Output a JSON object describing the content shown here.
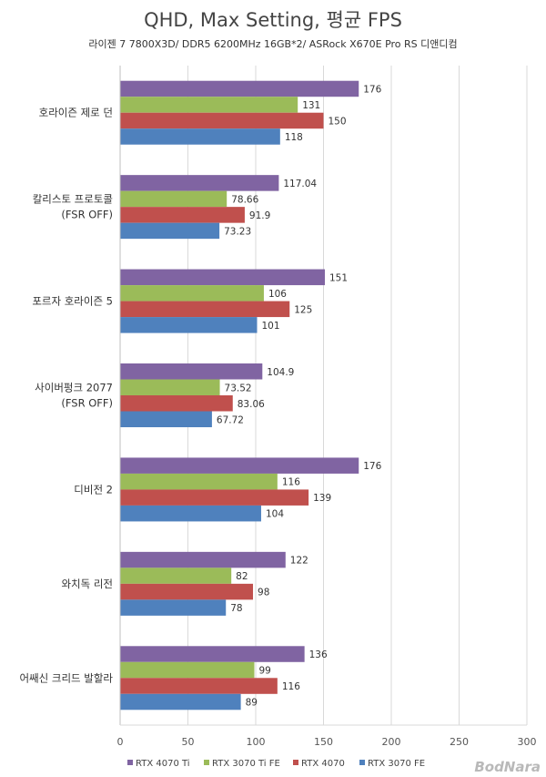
{
  "chart_data": {
    "type": "bar",
    "orientation": "horizontal",
    "title": "QHD, Max Setting, 평균 FPS",
    "subtitle": "라이젠 7 7800X3D/ DDR5 6200MHz 16GB*2/ ASRock X670E Pro RS 디앤디컴",
    "categories": [
      [
        "호라이즌 제로 던"
      ],
      [
        "칼리스토 프로토콜",
        "(FSR OFF)"
      ],
      [
        "포르자 호라이즌 5"
      ],
      [
        "사이버펑크 2077",
        "(FSR OFF)"
      ],
      [
        "디비전 2"
      ],
      [
        "와치독 리전"
      ],
      [
        "어쌔신 크리드 발할라"
      ]
    ],
    "series": [
      {
        "name": "RTX 4070 Ti",
        "color": "#8064a2",
        "values": [
          176,
          117.04,
          151,
          104.9,
          176,
          122,
          136
        ],
        "labels": [
          "176",
          "117.04",
          "151",
          "104.9",
          "176",
          "122",
          "136"
        ]
      },
      {
        "name": "RTX 3070 Ti FE",
        "color": "#9bbb59",
        "values": [
          131,
          78.66,
          106,
          73.52,
          116,
          82,
          99
        ],
        "labels": [
          "131",
          "78.66",
          "106",
          "73.52",
          "116",
          "82",
          "99"
        ]
      },
      {
        "name": "RTX 4070",
        "color": "#c0504d",
        "values": [
          150,
          91.9,
          125,
          83.06,
          139,
          98,
          116
        ],
        "labels": [
          "150",
          "91.9",
          "125",
          "83.06",
          "139",
          "98",
          "116"
        ]
      },
      {
        "name": "RTX 3070 FE",
        "color": "#4f81bd",
        "values": [
          118,
          73.23,
          101,
          67.72,
          104,
          78,
          89
        ],
        "labels": [
          "118",
          "73.23",
          "101",
          "67.72",
          "104",
          "78",
          "89"
        ]
      }
    ],
    "xlim": [
      0,
      300
    ],
    "xticks": [
      "0",
      "50",
      "100",
      "150",
      "200",
      "250",
      "300"
    ],
    "grid": true,
    "legend": "bottom"
  },
  "watermark": "BodNara"
}
